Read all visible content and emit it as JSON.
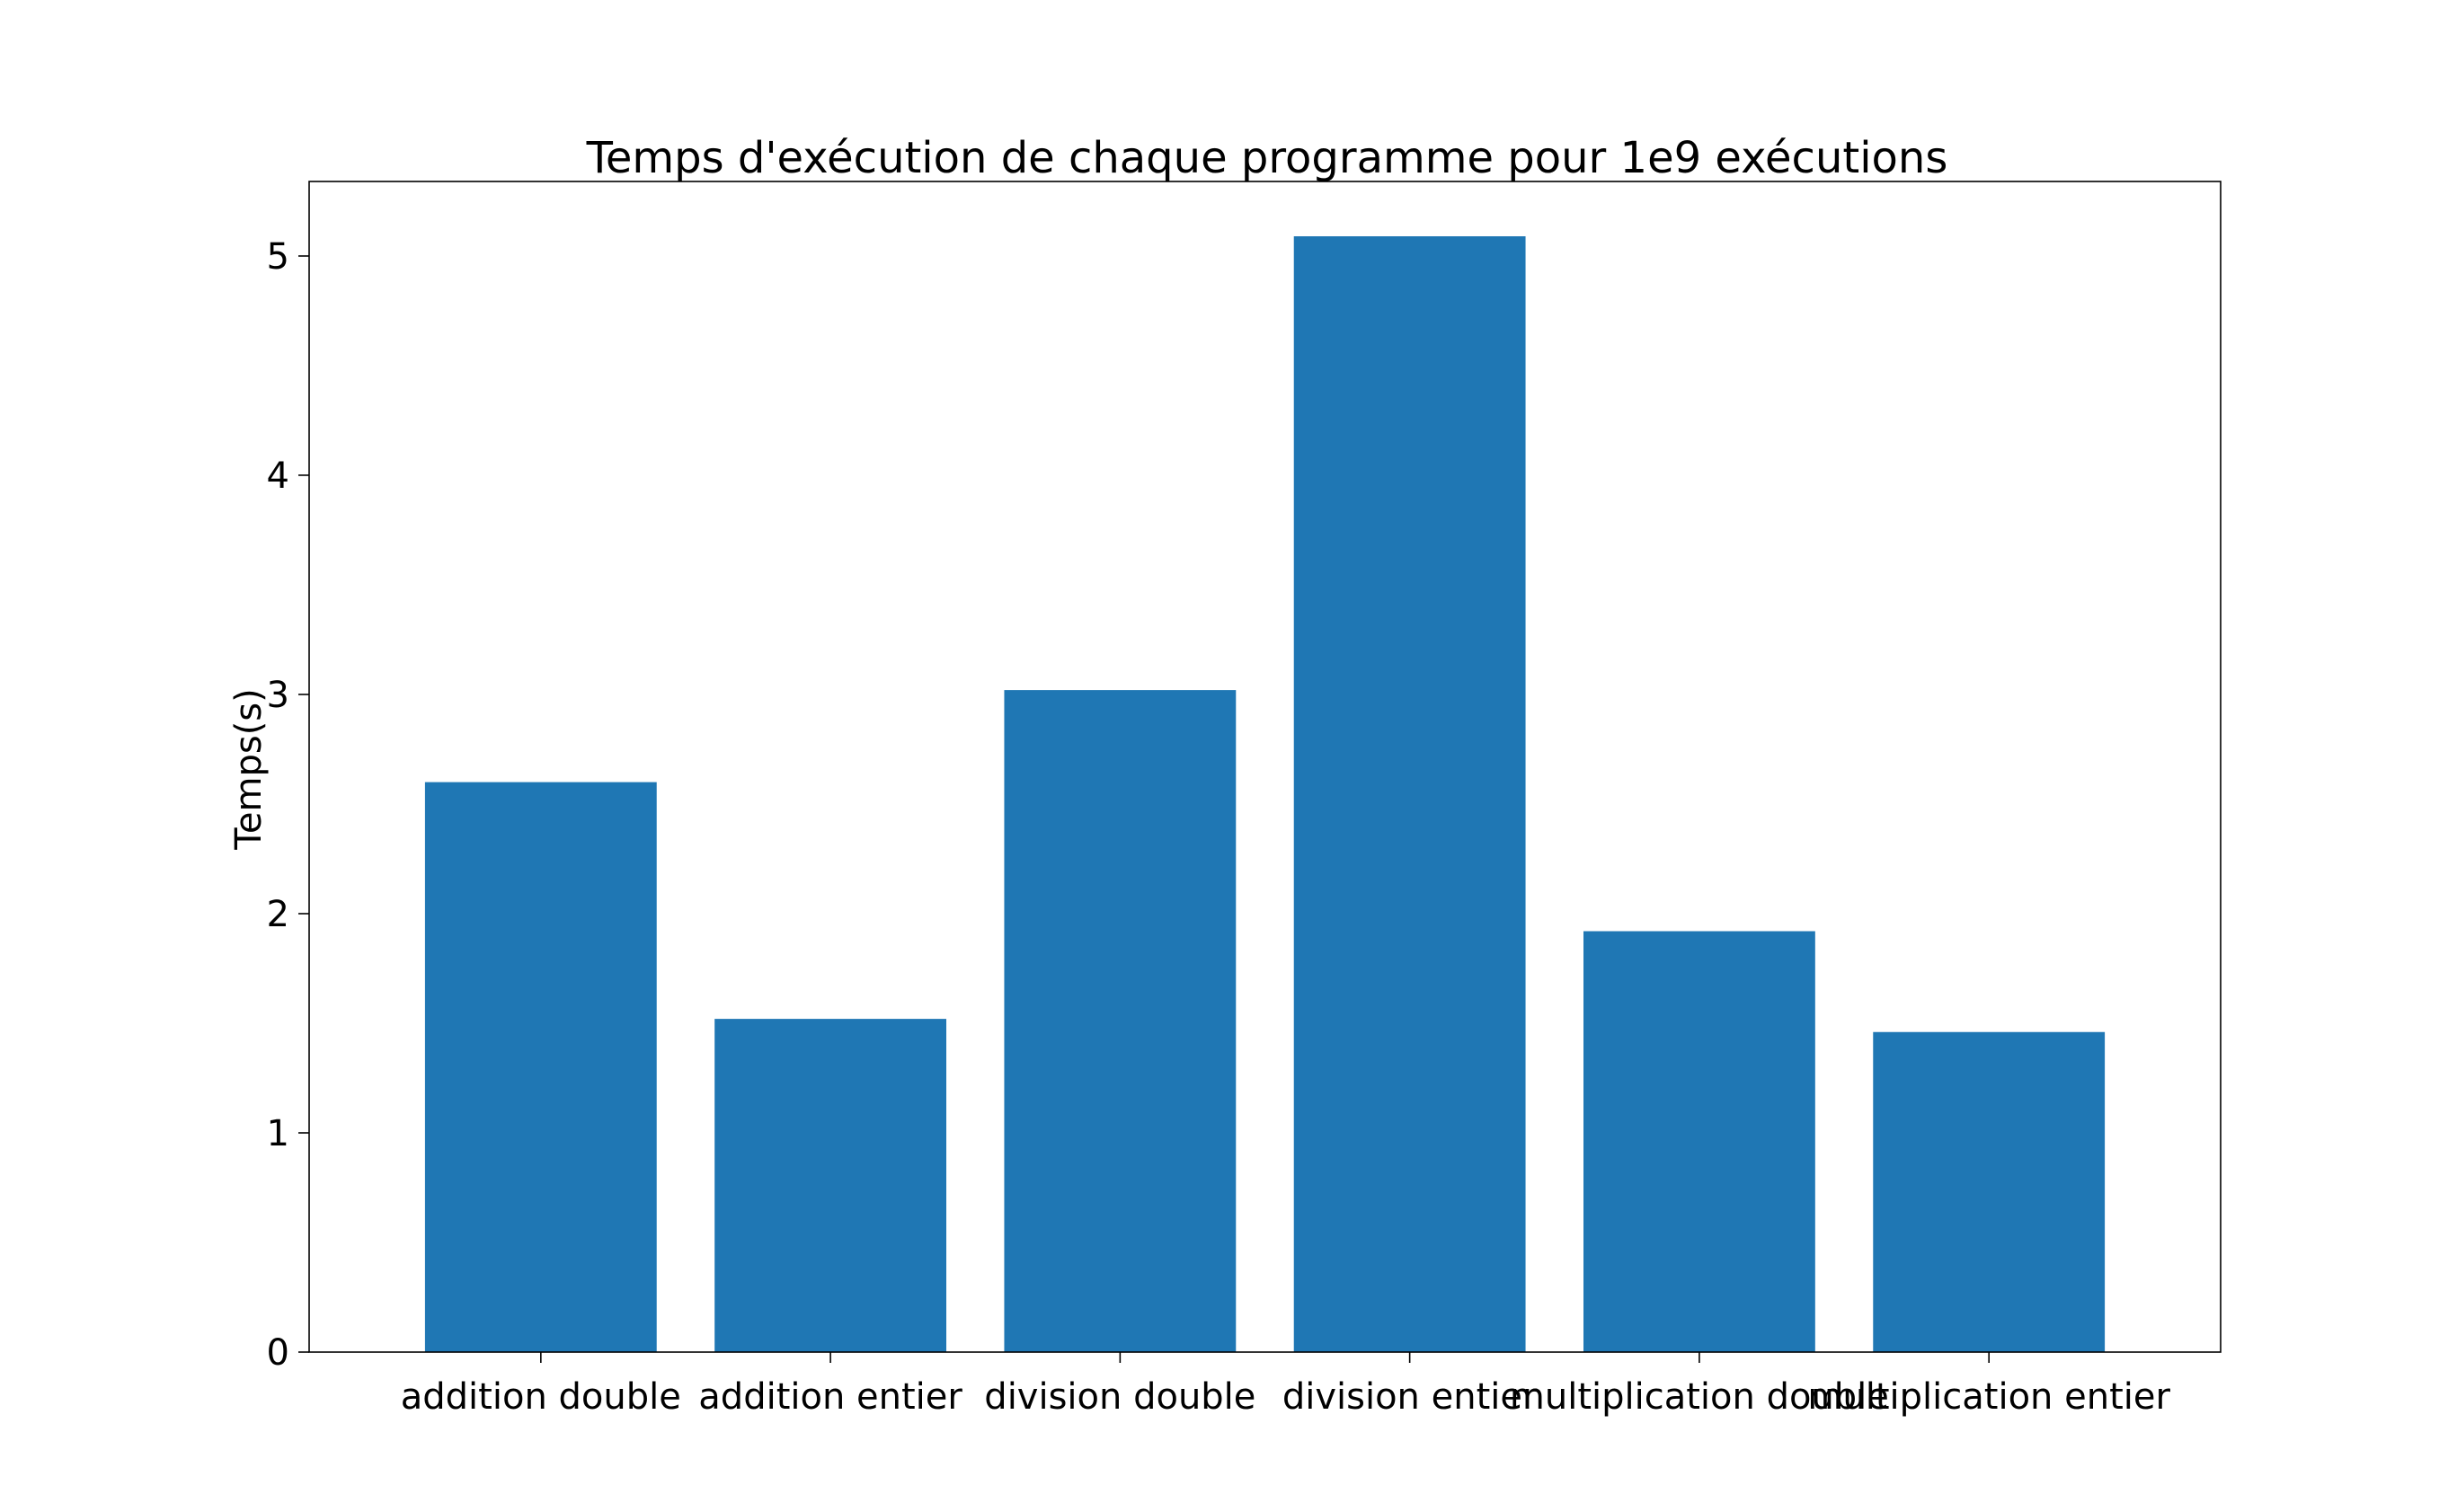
{
  "chart_data": {
    "type": "bar",
    "title": "Temps d'exécution de chaque programme pour 1e9 exécutions",
    "xlabel": "",
    "ylabel": "Temps(s)",
    "categories": [
      "addition double",
      "addition entier",
      "division double",
      "division entier",
      "multiplication double",
      "multiplication entier"
    ],
    "values": [
      2.6,
      1.52,
      3.02,
      5.09,
      1.92,
      1.46
    ],
    "ylim": [
      0,
      5.34
    ],
    "yticks": [
      0,
      1,
      2,
      3,
      4,
      5
    ],
    "bar_color": "#1f77b4",
    "grid": false,
    "legend": "none"
  }
}
